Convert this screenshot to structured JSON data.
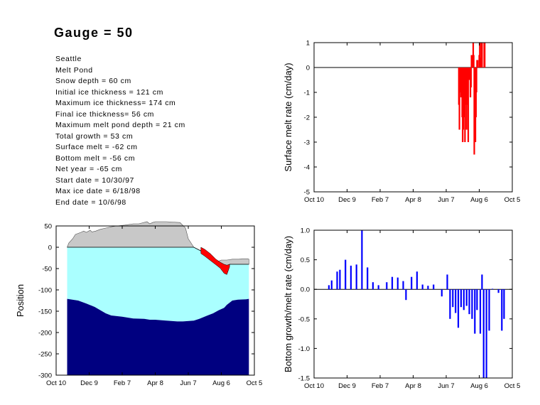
{
  "title": "Gauge = 50",
  "info": [
    "Seattle",
    "Melt Pond",
    "Snow depth = 60 cm",
    "Initial ice thickness = 121 cm",
    "Maximum ice thickness= 174 cm",
    "Final ice thickness= 56 cm",
    "Maximum melt pond depth = 21 cm",
    "Total growth = 53 cm",
    "Surface melt = -62 cm",
    "Bottom melt = -56 cm",
    "Net year = -65 cm",
    "Start date = 10/30/97",
    "Max ice date = 6/18/98",
    "End date = 10/6/98"
  ],
  "colors": {
    "snow": "#c8c8c8",
    "ice": "#aaffff",
    "deep_ice": "#000080",
    "melt_pond": "#ff0000",
    "surface_melt": "#ff0000",
    "bottom": "#0000ff"
  },
  "chart_data": [
    {
      "type": "area",
      "ylabel": "Position",
      "xlabel": "",
      "title": "",
      "x_ticks": [
        "Oct 10",
        "Dec 9",
        "Feb 7",
        "Apr 8",
        "Jun 7",
        "Aug 6",
        "Oct 5"
      ],
      "x_tick_days": [
        0,
        60,
        120,
        180,
        240,
        300,
        360
      ],
      "xlim": [
        0,
        360
      ],
      "ylim": [
        -300,
        50
      ],
      "y_ticks": [
        50,
        0,
        -50,
        -100,
        -150,
        -200,
        -250,
        -300
      ],
      "snow_surface": [
        [
          20,
          0
        ],
        [
          23,
          10
        ],
        [
          30,
          20
        ],
        [
          35,
          30
        ],
        [
          45,
          35
        ],
        [
          50,
          38
        ],
        [
          55,
          35
        ],
        [
          62,
          40
        ],
        [
          65,
          36
        ],
        [
          72,
          38
        ],
        [
          80,
          42
        ],
        [
          90,
          45
        ],
        [
          100,
          48
        ],
        [
          110,
          50
        ],
        [
          125,
          52
        ],
        [
          140,
          55
        ],
        [
          150,
          55
        ],
        [
          165,
          60
        ],
        [
          170,
          55
        ],
        [
          175,
          58
        ],
        [
          180,
          60
        ],
        [
          200,
          60
        ],
        [
          225,
          58
        ],
        [
          235,
          45
        ],
        [
          240,
          20
        ],
        [
          245,
          10
        ],
        [
          250,
          0
        ],
        [
          285,
          -30
        ],
        [
          290,
          -35
        ],
        [
          300,
          -30
        ],
        [
          310,
          -30
        ],
        [
          320,
          -28
        ],
        [
          332,
          -28
        ],
        [
          337,
          -27
        ],
        [
          340,
          -27
        ],
        [
          345,
          -27
        ],
        [
          348,
          -27
        ],
        [
          350,
          -28
        ]
      ],
      "ice_top": [
        [
          20,
          0
        ],
        [
          250,
          0
        ],
        [
          265,
          -10
        ],
        [
          275,
          -20
        ],
        [
          285,
          -30
        ],
        [
          295,
          -40
        ],
        [
          300,
          -45
        ],
        [
          305,
          -55
        ],
        [
          310,
          -58
        ],
        [
          315,
          -40
        ],
        [
          350,
          -40
        ]
      ],
      "ice_bottom": [
        [
          20,
          -121
        ],
        [
          40,
          -125
        ],
        [
          55,
          -132
        ],
        [
          70,
          -140
        ],
        [
          90,
          -155
        ],
        [
          100,
          -160
        ],
        [
          120,
          -163
        ],
        [
          140,
          -167
        ],
        [
          160,
          -168
        ],
        [
          170,
          -170
        ],
        [
          180,
          -170
        ],
        [
          200,
          -172
        ],
        [
          220,
          -174
        ],
        [
          230,
          -174
        ],
        [
          250,
          -172
        ],
        [
          260,
          -168
        ],
        [
          275,
          -160
        ],
        [
          285,
          -155
        ],
        [
          295,
          -148
        ],
        [
          305,
          -142
        ],
        [
          310,
          -135
        ],
        [
          320,
          -125
        ],
        [
          330,
          -123
        ],
        [
          345,
          -122
        ],
        [
          350,
          -121
        ]
      ],
      "melt_pond_top": [
        [
          263,
          0
        ],
        [
          270,
          -5
        ],
        [
          280,
          -15
        ],
        [
          290,
          -28
        ],
        [
          298,
          -35
        ],
        [
          305,
          -40
        ],
        [
          310,
          -42
        ],
        [
          315,
          -40
        ]
      ]
    },
    {
      "type": "bar",
      "ylabel": "Surface melt rate (cm/day)",
      "xlabel": "",
      "title": "",
      "x_ticks": [
        "Oct 10",
        "Dec 9",
        "Feb 7",
        "Apr 8",
        "Jun 7",
        "Aug 6",
        "Oct 5"
      ],
      "x_tick_days": [
        0,
        60,
        120,
        180,
        240,
        300,
        360
      ],
      "xlim": [
        0,
        360
      ],
      "ylim": [
        -5,
        1
      ],
      "y_ticks": [
        1,
        0,
        -1,
        -2,
        -3,
        -4,
        -5
      ],
      "x": [
        263,
        264,
        265,
        266,
        267,
        268,
        269,
        270,
        271,
        272,
        273,
        274,
        275,
        276,
        277,
        278,
        279,
        280,
        281,
        282,
        283,
        284,
        285,
        286,
        287,
        288,
        289,
        290,
        291,
        292,
        293,
        294,
        295,
        296,
        297,
        300,
        301,
        302,
        303,
        304,
        305,
        309,
        310
      ],
      "values": [
        -1.5,
        -2.5,
        -0.5,
        -1.0,
        -1.2,
        -0.5,
        -2.0,
        -3.0,
        -2.5,
        -1.5,
        -2.0,
        -3.0,
        -1.5,
        -1.0,
        -2.5,
        -1.5,
        -1.0,
        -3.0,
        -0.5,
        -0.5,
        -0.5,
        -1.2,
        -0.8,
        0.5,
        0.5,
        0.3,
        1.0,
        0.5,
        -3.5,
        -1.0,
        -3.0,
        -2.0,
        -1.0,
        0.3,
        0.3,
        0.5,
        1.0,
        0.4,
        0.3,
        1.0,
        1.0,
        1.0,
        1.0
      ]
    },
    {
      "type": "bar",
      "ylabel": "Bottom growth/melt rate (cm/day)",
      "xlabel": "",
      "title": "",
      "x_ticks": [
        "Oct 10",
        "Dec 9",
        "Feb 7",
        "Apr 8",
        "Jun 7",
        "Aug 6",
        "Oct 5"
      ],
      "x_tick_days": [
        0,
        60,
        120,
        180,
        240,
        300,
        360
      ],
      "xlim": [
        0,
        360
      ],
      "ylim": [
        -1.5,
        1
      ],
      "y_ticks": [
        1.0,
        0.5,
        0.0,
        -0.5,
        -1.0,
        -1.5
      ],
      "x": [
        27,
        32,
        42,
        47,
        57,
        67,
        77,
        87,
        97,
        107,
        117,
        132,
        142,
        152,
        162,
        167,
        177,
        187,
        197,
        207,
        217,
        232,
        242,
        247,
        252,
        257,
        262,
        267,
        272,
        277,
        282,
        287,
        292,
        296,
        302,
        305,
        308,
        313,
        318,
        324,
        335,
        341,
        345
      ],
      "values": [
        0.07,
        0.15,
        0.3,
        0.33,
        0.5,
        0.4,
        0.42,
        1.0,
        0.37,
        0.12,
        0.07,
        0.12,
        0.21,
        0.2,
        0.14,
        -0.18,
        0.21,
        0.3,
        0.08,
        0.06,
        0.08,
        -0.12,
        0.25,
        -0.5,
        -0.3,
        -0.4,
        -0.65,
        -0.3,
        -0.35,
        -0.28,
        -0.42,
        -0.5,
        -0.75,
        -0.35,
        -0.75,
        0.25,
        -1.5,
        -1.5,
        -0.7,
        0.01,
        -0.06,
        -0.7,
        -0.5
      ]
    }
  ]
}
